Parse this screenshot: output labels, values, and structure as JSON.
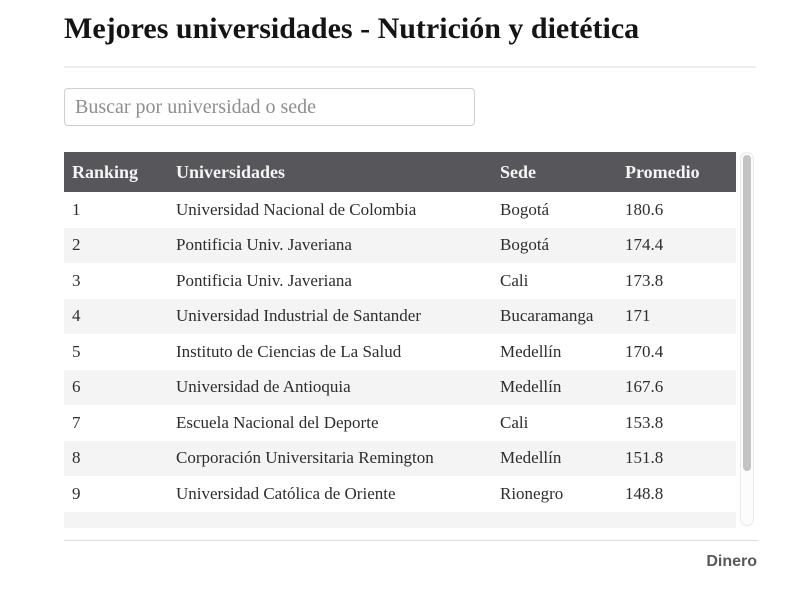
{
  "page": {
    "title": "Mejores universidades - Nutrición y dietética",
    "brand": "Dinero"
  },
  "search": {
    "placeholder": "Buscar por universidad o sede",
    "value": ""
  },
  "table": {
    "columns": [
      "Ranking",
      "Universidades",
      "Sede",
      "Promedio"
    ],
    "rows": [
      {
        "ranking": "1",
        "universidad": "Universidad Nacional de Colombia",
        "sede": "Bogotá",
        "promedio": "180.6"
      },
      {
        "ranking": "2",
        "universidad": "Pontificia Univ. Javeriana",
        "sede": "Bogotá",
        "promedio": "174.4"
      },
      {
        "ranking": "3",
        "universidad": "Pontificia Univ. Javeriana",
        "sede": "Cali",
        "promedio": "173.8"
      },
      {
        "ranking": "4",
        "universidad": "Universidad Industrial de Santander",
        "sede": "Bucaramanga",
        "promedio": "171"
      },
      {
        "ranking": "5",
        "universidad": "Instituto de Ciencias de La Salud",
        "sede": "Medellín",
        "promedio": "170.4"
      },
      {
        "ranking": "6",
        "universidad": "Universidad de Antioquia",
        "sede": "Medellín",
        "promedio": "167.6"
      },
      {
        "ranking": "7",
        "universidad": "Escuela Nacional del Deporte",
        "sede": "Cali",
        "promedio": "153.8"
      },
      {
        "ranking": "8",
        "universidad": "Corporación Universitaria Remington",
        "sede": "Medellín",
        "promedio": "151.8"
      },
      {
        "ranking": "9",
        "universidad": "Universidad Católica de Oriente",
        "sede": "Rionegro",
        "promedio": "148.8"
      }
    ],
    "clipped_next_row": true
  },
  "colors": {
    "header_bg": "#57565a",
    "header_text": "#f5f5f5",
    "row_alt_bg": "#f4f4f4",
    "body_text": "#2d2d2d",
    "brand_text": "#58595b",
    "scroll_thumb": "#c4c4c4"
  }
}
